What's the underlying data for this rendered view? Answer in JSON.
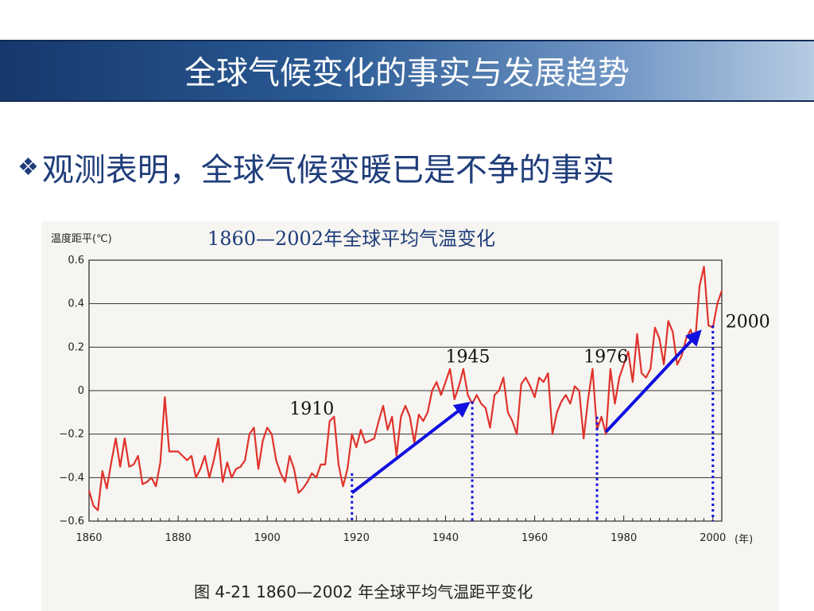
{
  "slide": {
    "title": "全球气候变化的事实与发展趋势",
    "bullet_icon": "diamond-cluster-icon",
    "bullet_text": "观测表明，全球气候变暖已是不争的事实"
  },
  "colors": {
    "title_text": "#ffffff",
    "body_text": "#1f3d7a",
    "series": "#e0322b",
    "arrow": "#1010e0",
    "dotted": "#1010e0"
  },
  "chart_data": {
    "type": "line",
    "title": "1860—2002年全球平均气温变化",
    "ylabel": "温度距平(℃)",
    "x_unit_label": "(年)",
    "caption": "图 4-21    1860—2002 年全球平均气温距平变化",
    "xlim": [
      1860,
      2002
    ],
    "ylim": [
      -0.6,
      0.6
    ],
    "grid": "horizontal",
    "y_ticks": [
      {
        "value": 0.6,
        "label": "0.6"
      },
      {
        "value": 0.4,
        "label": "0.4"
      },
      {
        "value": 0.2,
        "label": "0.2"
      },
      {
        "value": 0,
        "label": "0"
      },
      {
        "value": -0.2,
        "label": "−0.2"
      },
      {
        "value": -0.4,
        "label": "−0.4"
      },
      {
        "value": -0.6,
        "label": "−0.6"
      }
    ],
    "x_ticks": [
      {
        "value": 1860,
        "label": "1860"
      },
      {
        "value": 1880,
        "label": "1880"
      },
      {
        "value": 1900,
        "label": "1900"
      },
      {
        "value": 1920,
        "label": "1920"
      },
      {
        "value": 1940,
        "label": "1940"
      },
      {
        "value": 1960,
        "label": "1960"
      },
      {
        "value": 1980,
        "label": "1980"
      },
      {
        "value": 2000,
        "label": "2000"
      }
    ],
    "series": [
      {
        "x": [
          1860,
          1861,
          1862,
          1863,
          1864,
          1865,
          1866,
          1867,
          1868,
          1869,
          1870,
          1871,
          1872,
          1873,
          1874,
          1875,
          1876,
          1877,
          1878,
          1879,
          1880,
          1881,
          1882,
          1883,
          1884,
          1885,
          1886,
          1887,
          1888,
          1889,
          1890,
          1891,
          1892,
          1893,
          1894,
          1895,
          1896,
          1897,
          1898,
          1899,
          1900,
          1901,
          1902,
          1903,
          1904,
          1905,
          1906,
          1907,
          1908,
          1909,
          1910,
          1911,
          1912,
          1913,
          1914,
          1915,
          1916,
          1917,
          1918,
          1919,
          1920,
          1921,
          1922,
          1923,
          1924,
          1925,
          1926,
          1927,
          1928,
          1929,
          1930,
          1931,
          1932,
          1933,
          1934,
          1935,
          1936,
          1937,
          1938,
          1939,
          1940,
          1941,
          1942,
          1943,
          1944,
          1945,
          1946,
          1947,
          1948,
          1949,
          1950,
          1951,
          1952,
          1953,
          1954,
          1955,
          1956,
          1957,
          1958,
          1959,
          1960,
          1961,
          1962,
          1963,
          1964,
          1965,
          1966,
          1967,
          1968,
          1969,
          1970,
          1971,
          1972,
          1973,
          1974,
          1975,
          1976,
          1977,
          1978,
          1979,
          1980,
          1981,
          1982,
          1983,
          1984,
          1985,
          1986,
          1987,
          1988,
          1989,
          1990,
          1991,
          1992,
          1993,
          1994,
          1995,
          1996,
          1997,
          1998,
          1999,
          2000,
          2001,
          2002
        ],
        "y": [
          -0.46,
          -0.53,
          -0.55,
          -0.37,
          -0.45,
          -0.33,
          -0.22,
          -0.35,
          -0.22,
          -0.35,
          -0.34,
          -0.3,
          -0.43,
          -0.42,
          -0.4,
          -0.44,
          -0.33,
          -0.03,
          -0.28,
          -0.28,
          -0.28,
          -0.3,
          -0.32,
          -0.3,
          -0.4,
          -0.36,
          -0.3,
          -0.4,
          -0.32,
          -0.22,
          -0.42,
          -0.33,
          -0.4,
          -0.36,
          -0.35,
          -0.32,
          -0.2,
          -0.17,
          -0.36,
          -0.23,
          -0.17,
          -0.2,
          -0.32,
          -0.38,
          -0.42,
          -0.3,
          -0.36,
          -0.47,
          -0.45,
          -0.42,
          -0.38,
          -0.4,
          -0.34,
          -0.34,
          -0.14,
          -0.12,
          -0.34,
          -0.44,
          -0.36,
          -0.2,
          -0.26,
          -0.18,
          -0.24,
          -0.23,
          -0.22,
          -0.14,
          -0.07,
          -0.18,
          -0.12,
          -0.3,
          -0.12,
          -0.07,
          -0.12,
          -0.24,
          -0.11,
          -0.14,
          -0.1,
          0.0,
          0.04,
          -0.02,
          0.04,
          0.1,
          -0.04,
          0.02,
          0.1,
          -0.02,
          -0.06,
          -0.02,
          -0.06,
          -0.08,
          -0.17,
          -0.02,
          0.0,
          0.06,
          -0.1,
          -0.14,
          -0.2,
          0.03,
          0.06,
          0.02,
          -0.03,
          0.06,
          0.04,
          0.08,
          -0.2,
          -0.1,
          -0.05,
          -0.02,
          -0.06,
          0.02,
          0.0,
          -0.22,
          -0.04,
          0.1,
          -0.18,
          -0.12,
          -0.2,
          0.1,
          -0.06,
          0.06,
          0.12,
          0.18,
          0.04,
          0.26,
          0.08,
          0.06,
          0.1,
          0.29,
          0.24,
          0.12,
          0.32,
          0.27,
          0.12,
          0.16,
          0.24,
          0.28,
          0.22,
          0.48,
          0.57,
          0.3,
          0.29,
          0.4,
          0.46
        ]
      }
    ],
    "annotations": [
      {
        "label": "1910",
        "year": 1910,
        "value": -0.11
      },
      {
        "label": "1945",
        "year": 1945,
        "value": 0.13
      },
      {
        "label": "1976",
        "year": 1976,
        "value": 0.13
      },
      {
        "label": "2000",
        "year": 2000,
        "value": 0.29
      }
    ],
    "trend_arrows": [
      {
        "from": [
          1919,
          -0.47
        ],
        "to": [
          1945,
          -0.06
        ]
      },
      {
        "from": [
          1976,
          -0.19
        ],
        "to": [
          1997,
          0.27
        ]
      }
    ],
    "dotted_markers": [
      {
        "year": 1919,
        "from": -0.38,
        "to": -0.6
      },
      {
        "year": 1946,
        "from": -0.05,
        "to": -0.6
      },
      {
        "year": 1974,
        "from": -0.12,
        "to": -0.6
      },
      {
        "year": 2000,
        "from": 0.3,
        "to": -0.6
      }
    ]
  }
}
